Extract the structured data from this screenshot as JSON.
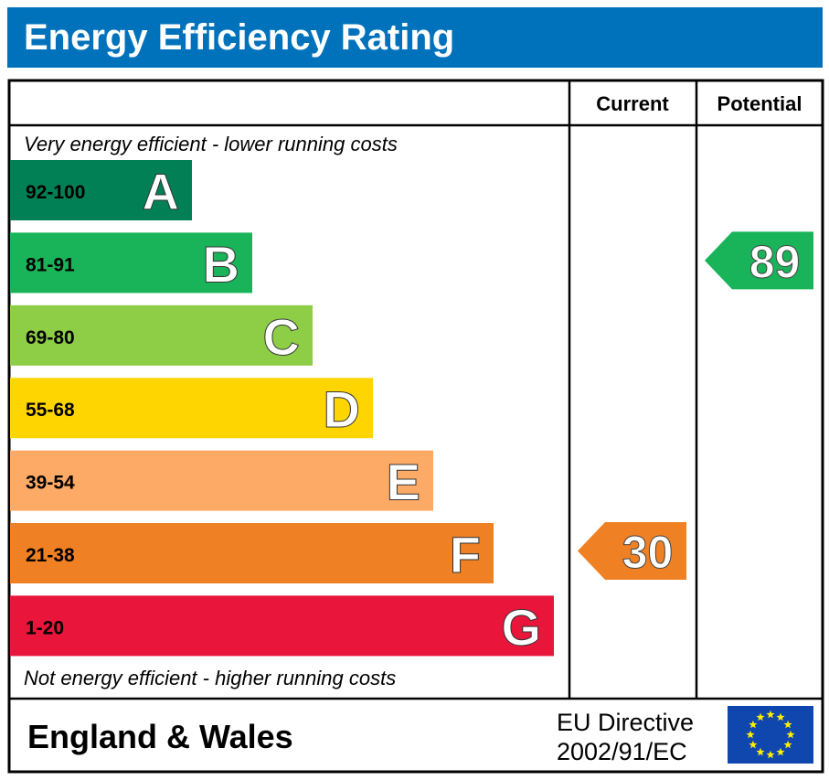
{
  "title": "Energy Efficiency Rating",
  "columns": {
    "current": "Current",
    "potential": "Potential"
  },
  "top_note": "Very energy efficient - lower running costs",
  "bottom_note": "Not energy efficient - higher running costs",
  "footer": {
    "region": "England & Wales",
    "directive_line1": "EU Directive",
    "directive_line2": "2002/91/EC",
    "flag_icon": "eu-flag-icon"
  },
  "chart_data": {
    "type": "bar",
    "bands": [
      {
        "letter": "A",
        "range": "92-100",
        "color": "#008054",
        "range_text_color": "#000000"
      },
      {
        "letter": "B",
        "range": "81-91",
        "color": "#19b459",
        "range_text_color": "#000000"
      },
      {
        "letter": "C",
        "range": "69-80",
        "color": "#8dce46",
        "range_text_color": "#000000"
      },
      {
        "letter": "D",
        "range": "55-68",
        "color": "#ffd500",
        "range_text_color": "#000000"
      },
      {
        "letter": "E",
        "range": "39-54",
        "color": "#fcaa65",
        "range_text_color": "#000000"
      },
      {
        "letter": "F",
        "range": "21-38",
        "color": "#ef8023",
        "range_text_color": "#000000"
      },
      {
        "letter": "G",
        "range": "1-20",
        "color": "#e9153b",
        "range_text_color": "#000000"
      }
    ],
    "current": {
      "value": 30,
      "band": "F",
      "color": "#ef8023"
    },
    "potential": {
      "value": 89,
      "band": "B",
      "color": "#19b459"
    }
  }
}
